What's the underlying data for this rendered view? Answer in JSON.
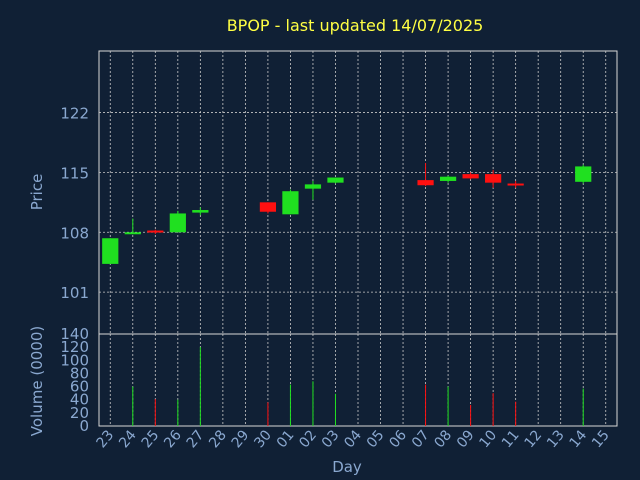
{
  "chart_data": {
    "type": "candlestick",
    "title": "BPOP - last updated 14/07/2025",
    "xlabel": "Day",
    "price_label": "Price",
    "volume_label": "Volume (0000)",
    "price_ticks": [
      101,
      108,
      115,
      122
    ],
    "price_ylim": [
      96.1,
      129.2
    ],
    "volume_ticks": [
      0,
      20,
      40,
      60,
      80,
      100,
      120,
      140
    ],
    "volume_ylim": [
      0,
      140
    ],
    "grid": true,
    "colors": {
      "background": "#102035",
      "frame": "#d8d8d8",
      "grid": "#c8c8c8",
      "up": "#20e020",
      "down": "#ff1010",
      "title": "#ffff44",
      "axis_text": "#8aa8d0"
    },
    "categories": [
      "23",
      "24",
      "25",
      "26",
      "27",
      "28",
      "29",
      "30",
      "01",
      "02",
      "03",
      "04",
      "05",
      "06",
      "07",
      "08",
      "09",
      "10",
      "11",
      "12",
      "13",
      "14",
      "15"
    ],
    "candles": [
      {
        "day": "23",
        "open": 104.3,
        "high": 107.3,
        "low": 104.3,
        "close": 107.3,
        "volume": 0
      },
      {
        "day": "24",
        "open": 107.9,
        "high": 109.6,
        "low": 107.8,
        "close": 108.0,
        "volume": 60
      },
      {
        "day": "25",
        "open": 108.2,
        "high": 108.3,
        "low": 107.8,
        "close": 108.0,
        "volume": 41
      },
      {
        "day": "26",
        "open": 108.0,
        "high": 110.5,
        "low": 108.0,
        "close": 110.2,
        "volume": 40
      },
      {
        "day": "27",
        "open": 110.3,
        "high": 110.9,
        "low": 110.0,
        "close": 110.6,
        "volume": 120
      },
      {
        "day": "30",
        "open": 111.5,
        "high": 111.5,
        "low": 110.2,
        "close": 110.4,
        "volume": 36
      },
      {
        "day": "01",
        "open": 110.1,
        "high": 113.0,
        "low": 110.1,
        "close": 112.8,
        "volume": 63
      },
      {
        "day": "02",
        "open": 113.1,
        "high": 114.0,
        "low": 111.8,
        "close": 113.6,
        "volume": 68
      },
      {
        "day": "03",
        "open": 113.8,
        "high": 114.4,
        "low": 113.7,
        "close": 114.4,
        "volume": 49
      },
      {
        "day": "07",
        "open": 114.1,
        "high": 116.1,
        "low": 113.4,
        "close": 113.5,
        "volume": 63
      },
      {
        "day": "08",
        "open": 114.0,
        "high": 114.6,
        "low": 113.8,
        "close": 114.5,
        "volume": 60
      },
      {
        "day": "09",
        "open": 114.8,
        "high": 115.0,
        "low": 114.2,
        "close": 114.3,
        "volume": 32
      },
      {
        "day": "10",
        "open": 114.8,
        "high": 115.3,
        "low": 113.2,
        "close": 113.8,
        "volume": 50
      },
      {
        "day": "11",
        "open": 113.7,
        "high": 114.0,
        "low": 113.2,
        "close": 113.5,
        "volume": 37
      },
      {
        "day": "14",
        "open": 113.9,
        "high": 115.9,
        "low": 113.7,
        "close": 115.7,
        "volume": 57
      }
    ]
  }
}
